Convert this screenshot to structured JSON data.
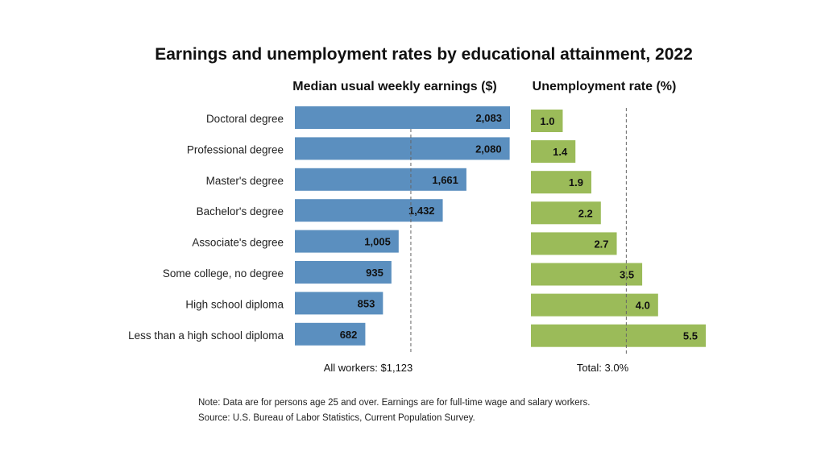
{
  "chart_data": [
    {
      "type": "bar",
      "orientation": "horizontal",
      "title": "Earnings and unemployment rates by educational attainment, 2022",
      "subtitle": "Median usual weekly earnings ($)",
      "categories": [
        "Doctoral degree",
        "Professional degree",
        "Master's degree",
        "Bachelor's degree",
        "Associate's degree",
        "Some college, no degree",
        "High school diploma",
        "Less than a high school diploma"
      ],
      "values": [
        2083,
        2080,
        1661,
        1432,
        1005,
        935,
        853,
        682
      ],
      "value_labels": [
        "2,083",
        "2,080",
        "1,661",
        "1,432",
        "1,005",
        "935",
        "853",
        "682"
      ],
      "reference_value": 1123,
      "reference_label": "All workers: $1,123",
      "xlim": [
        0,
        2083
      ],
      "color": "#5b8fbf"
    },
    {
      "type": "bar",
      "orientation": "horizontal",
      "subtitle": "Unemployment rate (%)",
      "categories": [
        "Doctoral degree",
        "Professional degree",
        "Master's degree",
        "Bachelor's degree",
        "Associate's degree",
        "Some college, no degree",
        "High school diploma",
        "Less than a high school diploma"
      ],
      "values": [
        1.0,
        1.4,
        1.9,
        2.2,
        2.7,
        3.5,
        4.0,
        5.5
      ],
      "value_labels": [
        "1.0",
        "1.4",
        "1.9",
        "2.2",
        "2.7",
        "3.5",
        "4.0",
        "5.5"
      ],
      "reference_value": 3.0,
      "reference_label": "Total: 3.0%",
      "xlim": [
        0,
        5.5
      ],
      "color": "#9bbb59"
    }
  ],
  "notes": {
    "note": "Note: Data are for persons age 25 and over. Earnings are for full-time wage and salary workers.",
    "source": "Source: U.S. Bureau of Labor Statistics, Current Population Survey."
  }
}
